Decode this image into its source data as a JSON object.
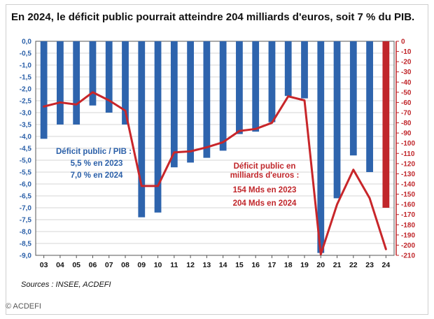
{
  "title": "En 2024, le déficit public pourrait atteindre 204 milliards d'euros, soit 7 % du PIB.",
  "source": "Sources : INSEE, ACDEFI",
  "copyright": "© ACDEFI",
  "annotation_pib": {
    "line1": "Déficit public / PIB :",
    "line2": "5,5 % en 2023",
    "line3": "7,0 % en 2024"
  },
  "annotation_md": {
    "line1": "Déficit public en",
    "line2": "milliards d'euros :",
    "line3": "154 Mds en 2023",
    "line4": "204 Mds en 2024"
  },
  "chart_data": {
    "type": "bar+line",
    "categories": [
      "03",
      "04",
      "05",
      "06",
      "07",
      "08",
      "09",
      "10",
      "11",
      "12",
      "13",
      "14",
      "15",
      "16",
      "17",
      "18",
      "19",
      "20",
      "21",
      "22",
      "23",
      "24"
    ],
    "left_axis": {
      "ylim": [
        -9.0,
        0.0
      ],
      "ticks": [
        "0,0",
        "-0,5",
        "-1,0",
        "-1,5",
        "-2,0",
        "-2,5",
        "-3,0",
        "-3,5",
        "-4,0",
        "-4,5",
        "-5,0",
        "-5,5",
        "-6,0",
        "-6,5",
        "-7,0",
        "-7,5",
        "-8,0",
        "-8,5",
        "-9,0"
      ]
    },
    "right_axis": {
      "ylim": [
        -210,
        0
      ],
      "ticks": [
        "0",
        "-10",
        "-20",
        "-30",
        "-40",
        "-50",
        "-60",
        "-70",
        "-80",
        "-90",
        "-100",
        "-110",
        "-120",
        "-130",
        "-140",
        "-150",
        "-160",
        "-170",
        "-180",
        "-190",
        "-200",
        "-210"
      ]
    },
    "bar_values": [
      -4.1,
      -3.5,
      -3.5,
      -2.7,
      -3.0,
      -3.5,
      -7.4,
      -7.2,
      -5.3,
      -5.1,
      -4.9,
      -4.6,
      -3.9,
      -3.8,
      -3.4,
      -2.3,
      -2.4,
      -8.9,
      -6.6,
      -4.8,
      -5.5,
      -7.0
    ],
    "bar_colors": [
      "#2e64ad",
      "#2e64ad",
      "#2e64ad",
      "#2e64ad",
      "#2e64ad",
      "#2e64ad",
      "#2e64ad",
      "#2e64ad",
      "#2e64ad",
      "#2e64ad",
      "#2e64ad",
      "#2e64ad",
      "#2e64ad",
      "#2e64ad",
      "#2e64ad",
      "#2e64ad",
      "#2e64ad",
      "#2e64ad",
      "#2e64ad",
      "#2e64ad",
      "#2e64ad",
      "#c0262a"
    ],
    "line_values": [
      -64,
      -60,
      -62,
      -50,
      -58,
      -68,
      -142,
      -142,
      -109,
      -108,
      -104,
      -99,
      -88,
      -86,
      -80,
      -54,
      -58,
      -209,
      -160,
      -126,
      -154,
      -204
    ],
    "line_color": "#c8262a",
    "bar_color": "#2e64ad",
    "grid": true
  }
}
